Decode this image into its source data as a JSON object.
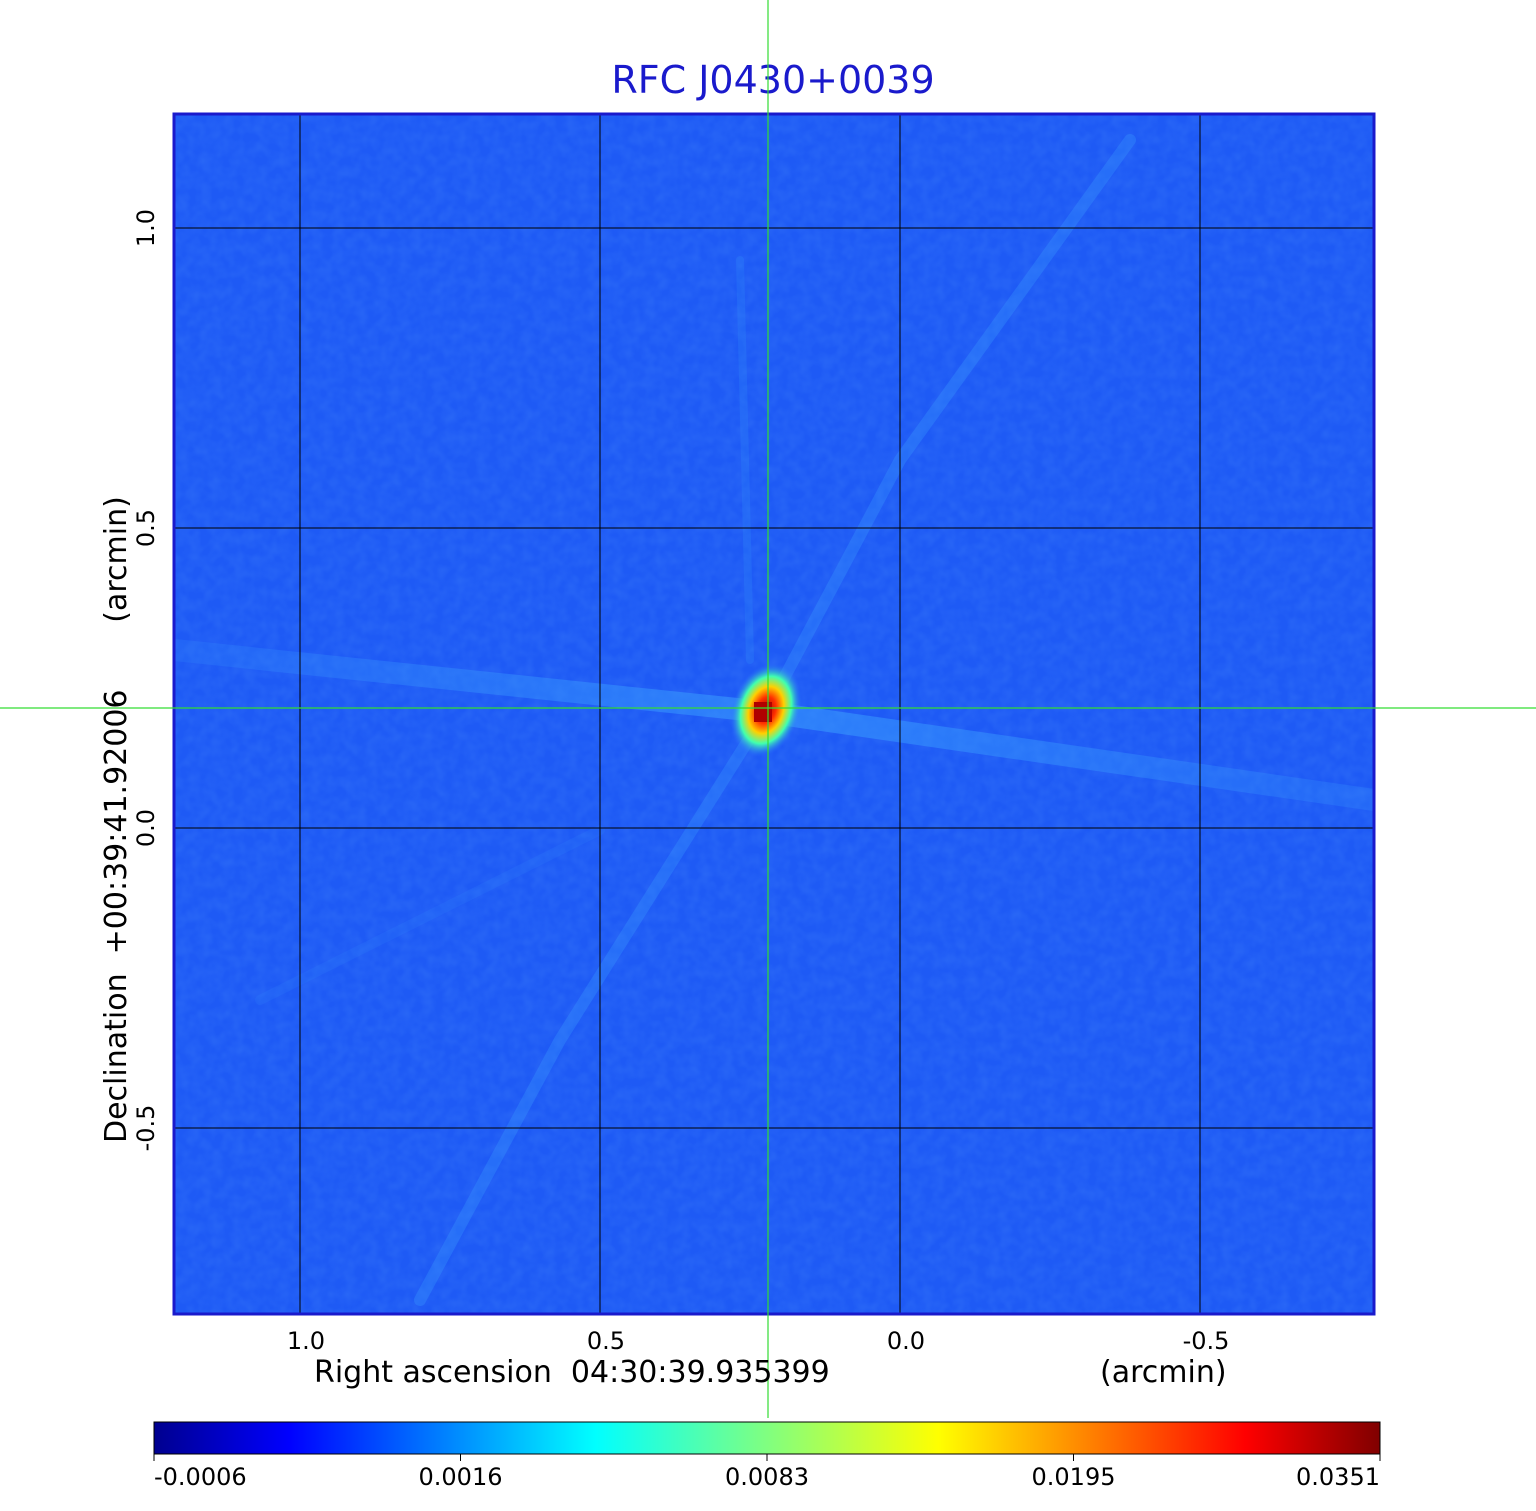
{
  "chart_data": {
    "type": "heatmap",
    "title": "RFC J0430+0039",
    "colors": {
      "title": "#1a1acc",
      "crosshair": "#33dd33",
      "grid": "#000000",
      "frame": "#1a1acc",
      "background_field": "#1e5af5"
    },
    "x_axis": {
      "label_main": "Right ascension  04:30:39.935399",
      "label_unit": "(arcmin)",
      "ticks": [
        {
          "value": 1.0,
          "label": "1.0"
        },
        {
          "value": 0.5,
          "label": "0.5"
        },
        {
          "value": 0.0,
          "label": "0.0"
        },
        {
          "value": -0.5,
          "label": "-0.5"
        }
      ],
      "range": [
        1.21,
        -0.79
      ],
      "inverted": true
    },
    "y_axis": {
      "label": "Declination  +00:39:41.92006       (arcmin)",
      "ticks": [
        {
          "value": 1.0,
          "label": "1.0"
        },
        {
          "value": 0.5,
          "label": "0.5"
        },
        {
          "value": 0.0,
          "label": "0.0"
        },
        {
          "value": -0.5,
          "label": "-0.5"
        }
      ],
      "range": [
        -0.81,
        1.19
      ]
    },
    "grid": true,
    "crosshair": {
      "x": 0.22,
      "y": 0.2
    },
    "peak": {
      "x": 0.22,
      "y": 0.2,
      "value": 0.0351
    },
    "colorbar": {
      "colormap": "jet",
      "tick_labels": [
        "-0.0006",
        "0.0016",
        "0.0083",
        "0.0195",
        "0.0351"
      ],
      "min": -0.0006,
      "max": 0.0351
    }
  }
}
